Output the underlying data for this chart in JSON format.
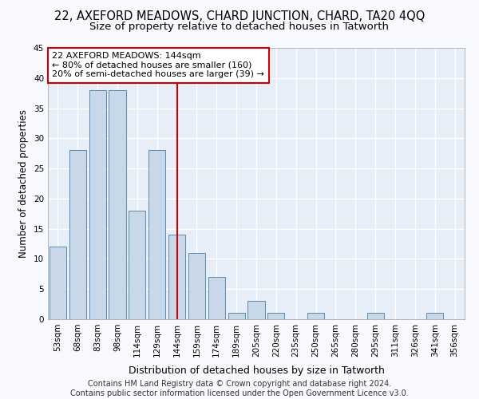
{
  "title": "22, AXEFORD MEADOWS, CHARD JUNCTION, CHARD, TA20 4QQ",
  "subtitle": "Size of property relative to detached houses in Tatworth",
  "xlabel": "Distribution of detached houses by size in Tatworth",
  "ylabel": "Number of detached properties",
  "categories": [
    "53sqm",
    "68sqm",
    "83sqm",
    "98sqm",
    "114sqm",
    "129sqm",
    "144sqm",
    "159sqm",
    "174sqm",
    "189sqm",
    "205sqm",
    "220sqm",
    "235sqm",
    "250sqm",
    "265sqm",
    "280sqm",
    "295sqm",
    "311sqm",
    "326sqm",
    "341sqm",
    "356sqm"
  ],
  "values": [
    12,
    28,
    38,
    38,
    18,
    28,
    14,
    11,
    7,
    1,
    3,
    1,
    0,
    1,
    0,
    0,
    1,
    0,
    0,
    1,
    0
  ],
  "bar_color": "#c8d8e8",
  "bar_edge_color": "#5a8ab0",
  "background_color": "#e8eef8",
  "fig_background_color": "#f8f9ff",
  "grid_color": "#ffffff",
  "vline_x_index": 6,
  "vline_color": "#cc0000",
  "annotation_line1": "22 AXEFORD MEADOWS: 144sqm",
  "annotation_line2": "← 80% of detached houses are smaller (160)",
  "annotation_line3": "20% of semi-detached houses are larger (39) →",
  "annotation_box_color": "#ffffff",
  "annotation_box_edge": "#cc0000",
  "ylim": [
    0,
    45
  ],
  "yticks": [
    0,
    5,
    10,
    15,
    20,
    25,
    30,
    35,
    40,
    45
  ],
  "footer": "Contains HM Land Registry data © Crown copyright and database right 2024.\nContains public sector information licensed under the Open Government Licence v3.0.",
  "title_fontsize": 10.5,
  "subtitle_fontsize": 9.5,
  "xlabel_fontsize": 9,
  "ylabel_fontsize": 8.5,
  "tick_fontsize": 7.5,
  "annotation_fontsize": 8,
  "footer_fontsize": 7
}
